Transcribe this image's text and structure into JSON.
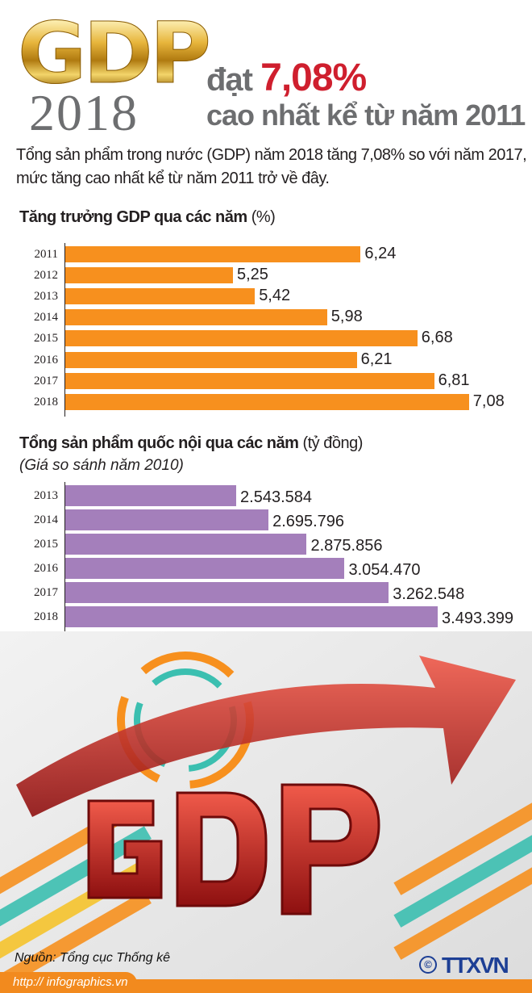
{
  "header": {
    "logo_text": "GDP",
    "logo_year": "2018",
    "headline_prefix": "đạt",
    "headline_value": "7,08%",
    "headline_line2": "cao nhất kể từ năm 2011"
  },
  "intro": "Tổng sản phẩm trong nước (GDP) năm 2018 tăng 7,08% so với năm 2017, mức tăng cao nhất kể từ năm 2011 trở về đây.",
  "colors": {
    "growth_bar": "#f7901e",
    "gdp_bar": "#a47fbb",
    "headline_red": "#cf1f2e",
    "grey": "#6d6e70"
  },
  "chart_data": [
    {
      "type": "bar",
      "orientation": "horizontal",
      "title": "Tăng trưởng GDP qua các năm",
      "unit": "(%)",
      "categories": [
        "2011",
        "2012",
        "2013",
        "2014",
        "2015",
        "2016",
        "2017",
        "2018"
      ],
      "values": [
        6.24,
        5.25,
        5.42,
        5.98,
        6.68,
        6.21,
        6.81,
        7.08
      ],
      "labels": [
        "6,24",
        "5,25",
        "5,42",
        "5,98",
        "6,68",
        "6,21",
        "6,81",
        "7,08"
      ]
    },
    {
      "type": "bar",
      "orientation": "horizontal",
      "title": "Tổng sản phẩm quốc nội qua các năm",
      "unit": "(tỷ đồng)",
      "subtitle": "(Giá so sánh năm 2010)",
      "categories": [
        "2013",
        "2014",
        "2015",
        "2016",
        "2017",
        "2018"
      ],
      "values": [
        2543584,
        2695796,
        2875856,
        3054470,
        3262548,
        3493399
      ],
      "labels": [
        "2.543.584",
        "2.695.796",
        "2.875.856",
        "3.054.470",
        "3.262.548",
        "3.493.399"
      ]
    }
  ],
  "footer": {
    "source": "Nguồn: Tổng cục Thống kê",
    "url": "http:// infographics.vn",
    "agency": "TTXVN",
    "copyright": "©"
  }
}
